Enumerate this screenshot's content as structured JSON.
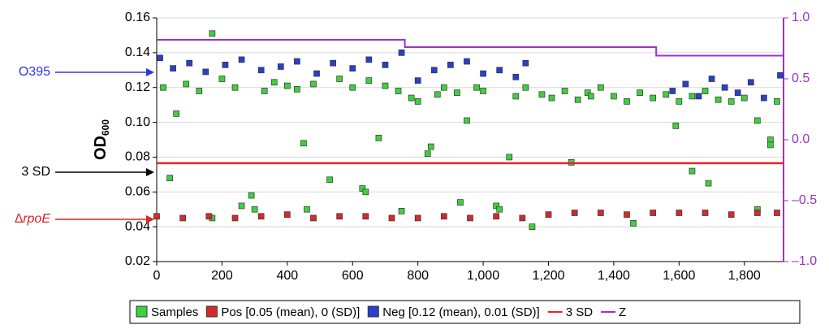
{
  "chart_data": {
    "type": "scatter",
    "ylabel": "OD",
    "ylabel_subscript": "600",
    "annotations": [
      {
        "text": "O395",
        "color": "#3333dd"
      },
      {
        "text": "3 SD",
        "color": "#000000"
      },
      {
        "text": "∆rpoE",
        "color": "#dd2222"
      }
    ],
    "xlim": [
      0,
      1920
    ],
    "ylim": [
      0.02,
      0.16
    ],
    "y2lim": [
      -1,
      1
    ],
    "xticks": [
      0,
      200,
      400,
      600,
      800,
      {
        "value": 1000,
        "label": "1,000"
      },
      {
        "value": 1200,
        "label": "1,200"
      },
      {
        "value": 1400,
        "label": "1,400"
      },
      {
        "value": 1600,
        "label": "1,600"
      },
      {
        "value": 1800,
        "label": "1,800"
      }
    ],
    "yticks": [
      0.02,
      0.04,
      0.06,
      0.08,
      {
        "value": 0.1,
        "label": "0.10"
      },
      0.12,
      0.14,
      0.16
    ],
    "y2ticks": [
      {
        "value": -1,
        "label": "–1.0"
      },
      {
        "value": -0.5,
        "label": "–0.5"
      },
      {
        "value": 0,
        "label": "0.0"
      },
      0.5,
      {
        "value": 1,
        "label": "1.0"
      }
    ],
    "grid": true,
    "series": [
      {
        "name": "Samples",
        "color": "#3fd03f",
        "x": [
          20,
          60,
          90,
          130,
          170,
          200,
          240,
          260,
          290,
          330,
          360,
          400,
          430,
          450,
          480,
          530,
          560,
          600,
          630,
          650,
          680,
          700,
          740,
          780,
          800,
          830,
          860,
          880,
          920,
          950,
          980,
          1000,
          1040,
          1080,
          1100,
          1130,
          1180,
          1210,
          1250,
          1290,
          1320,
          1360,
          1400,
          1440,
          1480,
          1520,
          1560,
          1600,
          1640,
          1680,
          1720,
          1760,
          1800,
          1840,
          1880,
          1900,
          40,
          170,
          300,
          460,
          640,
          750,
          840,
          930,
          1050,
          1150,
          1270,
          1330,
          1460,
          1590,
          1640,
          1690,
          1840,
          1880
        ],
        "values": [
          0.12,
          0.105,
          0.122,
          0.118,
          0.151,
          0.125,
          0.12,
          0.052,
          0.058,
          0.118,
          0.123,
          0.121,
          0.119,
          0.088,
          0.122,
          0.067,
          0.125,
          0.12,
          0.062,
          0.124,
          0.091,
          0.121,
          0.118,
          0.114,
          0.112,
          0.082,
          0.116,
          0.12,
          0.117,
          0.101,
          0.12,
          0.118,
          0.052,
          0.08,
          0.115,
          0.12,
          0.116,
          0.114,
          0.118,
          0.113,
          0.117,
          0.12,
          0.115,
          0.112,
          0.117,
          0.114,
          0.116,
          0.112,
          0.115,
          0.118,
          0.113,
          0.112,
          0.114,
          0.101,
          0.09,
          0.112,
          0.068,
          0.045,
          0.05,
          0.05,
          0.06,
          0.049,
          0.086,
          0.054,
          0.05,
          0.04,
          0.077,
          0.115,
          0.042,
          0.098,
          0.072,
          0.065,
          0.05,
          0.087
        ]
      },
      {
        "name": "Pos [0.05 (mean), 0 (SD)]",
        "color": "#d42a2a",
        "x": [
          0,
          80,
          160,
          240,
          320,
          400,
          480,
          560,
          640,
          720,
          800,
          880,
          960,
          1040,
          1120,
          1200,
          1280,
          1360,
          1440,
          1520,
          1600,
          1680,
          1760,
          1840,
          1900
        ],
        "values": [
          0.046,
          0.045,
          0.046,
          0.045,
          0.046,
          0.047,
          0.045,
          0.046,
          0.046,
          0.045,
          0.045,
          0.046,
          0.045,
          0.046,
          0.045,
          0.047,
          0.048,
          0.048,
          0.047,
          0.048,
          0.048,
          0.048,
          0.047,
          0.048,
          0.048
        ]
      },
      {
        "name": "Neg [0.12 (mean), 0.01 (SD)]",
        "color": "#2a3fcc",
        "x": [
          10,
          50,
          100,
          150,
          210,
          260,
          320,
          380,
          430,
          490,
          540,
          600,
          650,
          700,
          750,
          800,
          850,
          900,
          950,
          1000,
          1050,
          1100,
          1130,
          1580,
          1620,
          1660,
          1700,
          1740,
          1780,
          1820,
          1860,
          1910
        ],
        "values": [
          0.137,
          0.131,
          0.134,
          0.129,
          0.133,
          0.136,
          0.13,
          0.132,
          0.135,
          0.128,
          0.134,
          0.131,
          0.136,
          0.133,
          0.14,
          0.124,
          0.13,
          0.133,
          0.135,
          0.128,
          0.13,
          0.126,
          0.134,
          0.118,
          0.122,
          0.115,
          0.125,
          0.12,
          0.117,
          0.123,
          0.114,
          0.127
        ]
      },
      {
        "name": "3 SD",
        "color": "#ee2222",
        "kind": "hline",
        "value": 0.0765
      },
      {
        "name": "Z",
        "color": "#9933cc",
        "kind": "line",
        "axis": "y2",
        "x": [
          0,
          760,
          760,
          1530,
          1530,
          1920
        ],
        "values": [
          0.82,
          0.82,
          0.76,
          0.76,
          0.69,
          0.69
        ]
      }
    ]
  }
}
